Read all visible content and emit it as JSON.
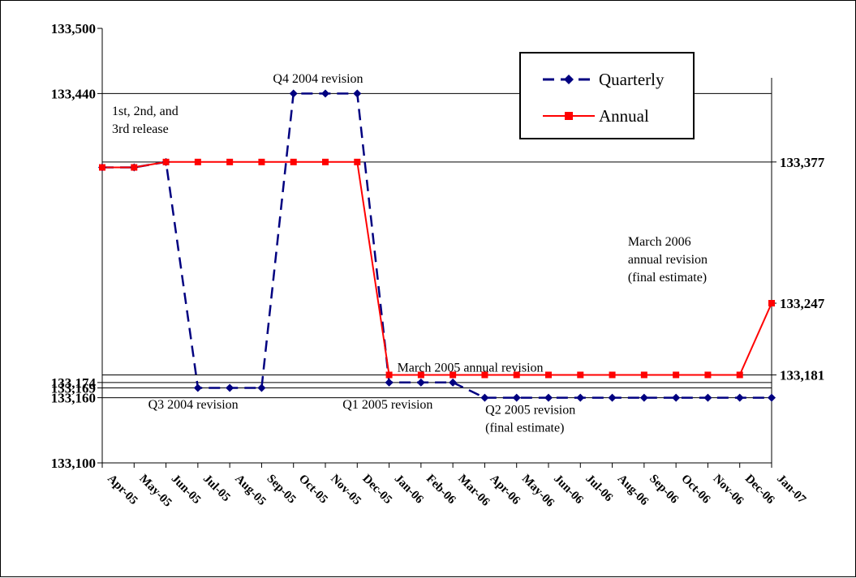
{
  "chart_data": {
    "type": "line",
    "title": "",
    "xlabel": "",
    "ylabel": "",
    "ylim": [
      133100,
      133500
    ],
    "grid": false,
    "legend_position": "top-right",
    "categories": [
      "Apr-05",
      "May-05",
      "Jun-05",
      "Jul-05",
      "Aug-05",
      "Sep-05",
      "Oct-05",
      "Nov-05",
      "Dec-05",
      "Jan-06",
      "Feb-06",
      "Mar-06",
      "Apr-06",
      "May-06",
      "Jun-06",
      "Jul-06",
      "Aug-06",
      "Sep-06",
      "Oct-06",
      "Nov-06",
      "Dec-06",
      "Jan-07"
    ],
    "series": [
      {
        "name": "Quarterly",
        "color": "#000080",
        "marker": "diamond",
        "line_style": "dashed",
        "values": [
          133372,
          133372,
          133377,
          133169,
          133169,
          133169,
          133440,
          133440,
          133440,
          133174,
          133174,
          133174,
          133160,
          133160,
          133160,
          133160,
          133160,
          133160,
          133160,
          133160,
          133160,
          133160
        ]
      },
      {
        "name": "Annual",
        "color": "#ff0000",
        "marker": "square",
        "line_style": "solid",
        "values": [
          133372,
          133372,
          133377,
          133377,
          133377,
          133377,
          133377,
          133377,
          133377,
          133181,
          133181,
          133181,
          133181,
          133181,
          133181,
          133181,
          133181,
          133181,
          133181,
          133181,
          133181,
          133247
        ]
      }
    ],
    "left_ticks": [
      "133,500",
      "133,440",
      "133,174",
      "133,169",
      "133,160",
      "133,100"
    ],
    "left_tick_values": [
      133500,
      133440,
      133174,
      133169,
      133160,
      133100
    ],
    "right_labels": [
      "133,377",
      "133,247",
      "133,181"
    ],
    "right_label_values": [
      133377,
      133247,
      133181
    ],
    "reference_lines": [
      133440,
      133377,
      133174,
      133169,
      133160,
      133181
    ],
    "annotations": [
      {
        "lines": [
          "1st, 2nd, and",
          "3rd release"
        ],
        "anchor": "start",
        "x": "Apr-05",
        "y": 133420
      },
      {
        "lines": [
          "Q4 2004 revision"
        ],
        "anchor": "start",
        "x": "Sep-05",
        "y": 133450
      },
      {
        "lines": [
          "Q3 2004 revision"
        ],
        "anchor": "start",
        "x": "Jun-05",
        "y": 133150
      },
      {
        "lines": [
          "Q1 2005 revision"
        ],
        "anchor": "start",
        "x": "Dec-05",
        "y": 133150
      },
      {
        "lines": [
          "March 2005 annual revision"
        ],
        "anchor": "start",
        "x": "Jan-06",
        "y": 133184
      },
      {
        "lines": [
          "Q2 2005 revision",
          "(final estimate)"
        ],
        "anchor": "start",
        "x": "Mar-06",
        "y": 133145
      },
      {
        "lines": [
          "March 2006",
          "annual revision",
          "(final estimate)"
        ],
        "anchor": "start",
        "x": "Sep-06",
        "y": 133300
      }
    ]
  }
}
